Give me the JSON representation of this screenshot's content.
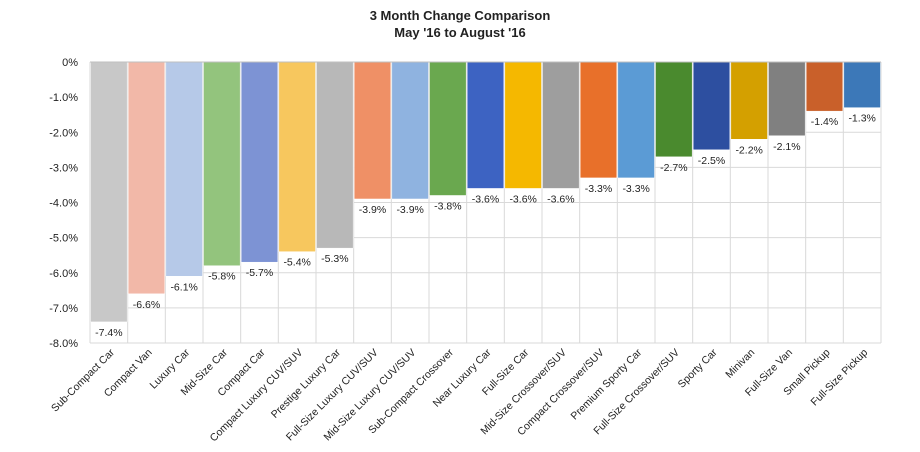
{
  "chart_data": {
    "type": "bar",
    "title": "3 Month Change Comparison",
    "subtitle": "May '16 to August '16",
    "categories": [
      "Sub-Compact Car",
      "Compact Van",
      "Luxury Car",
      "Mid-Size Car",
      "Compact Car",
      "Compact Luxury CUV/SUV",
      "Prestige Luxury Car",
      "Full-Size Luxury CUV/SUV",
      "Mid-Size Luxury CUV/SUV",
      "Sub-Compact Crossover",
      "Near Luxury Car",
      "Full-Size Car",
      "Mid-Size Crossover/SUV",
      "Compact Crossover/SUV",
      "Premium Sporty Car",
      "Full-Size Crossover/SUV",
      "Sporty Car",
      "Minivan",
      "Full-Size Van",
      "Small Pickup",
      "Full-Size Pickup"
    ],
    "values": [
      -7.4,
      -6.6,
      -6.1,
      -5.8,
      -5.7,
      -5.4,
      -5.3,
      -3.9,
      -3.9,
      -3.8,
      -3.6,
      -3.6,
      -3.6,
      -3.3,
      -3.3,
      -2.7,
      -2.5,
      -2.2,
      -2.1,
      -1.4,
      -1.3
    ],
    "value_labels": [
      "-7.4%",
      "-6.6%",
      "-6.1%",
      "-5.8%",
      "-5.7%",
      "-5.4%",
      "-5.3%",
      "-3.9%",
      "-3.9%",
      "-3.8%",
      "-3.6%",
      "-3.6%",
      "-3.6%",
      "-3.3%",
      "-3.3%",
      "-2.7%",
      "-2.5%",
      "-2.2%",
      "-2.1%",
      "-1.4%",
      "-1.3%"
    ],
    "colors": [
      "#c8c8c8",
      "#f2b8a8",
      "#b6c9e8",
      "#93c47d",
      "#7d93d4",
      "#f7c75e",
      "#b8b8b8",
      "#ef9066",
      "#8fb3e0",
      "#6aa84f",
      "#3d63c2",
      "#f5b800",
      "#9e9e9e",
      "#e8702a",
      "#5b9bd5",
      "#4a8a2e",
      "#2d4fa0",
      "#d4a000",
      "#808080",
      "#c9602a",
      "#3c78b8"
    ],
    "ylim": [
      -8,
      0
    ],
    "y_ticks": [
      "0%",
      "-1.0%",
      "-2.0%",
      "-3.0%",
      "-4.0%",
      "-5.0%",
      "-6.0%",
      "-7.0%",
      "-8.0%"
    ],
    "xlabel": "",
    "ylabel": "",
    "grid": true,
    "legend": "none"
  }
}
